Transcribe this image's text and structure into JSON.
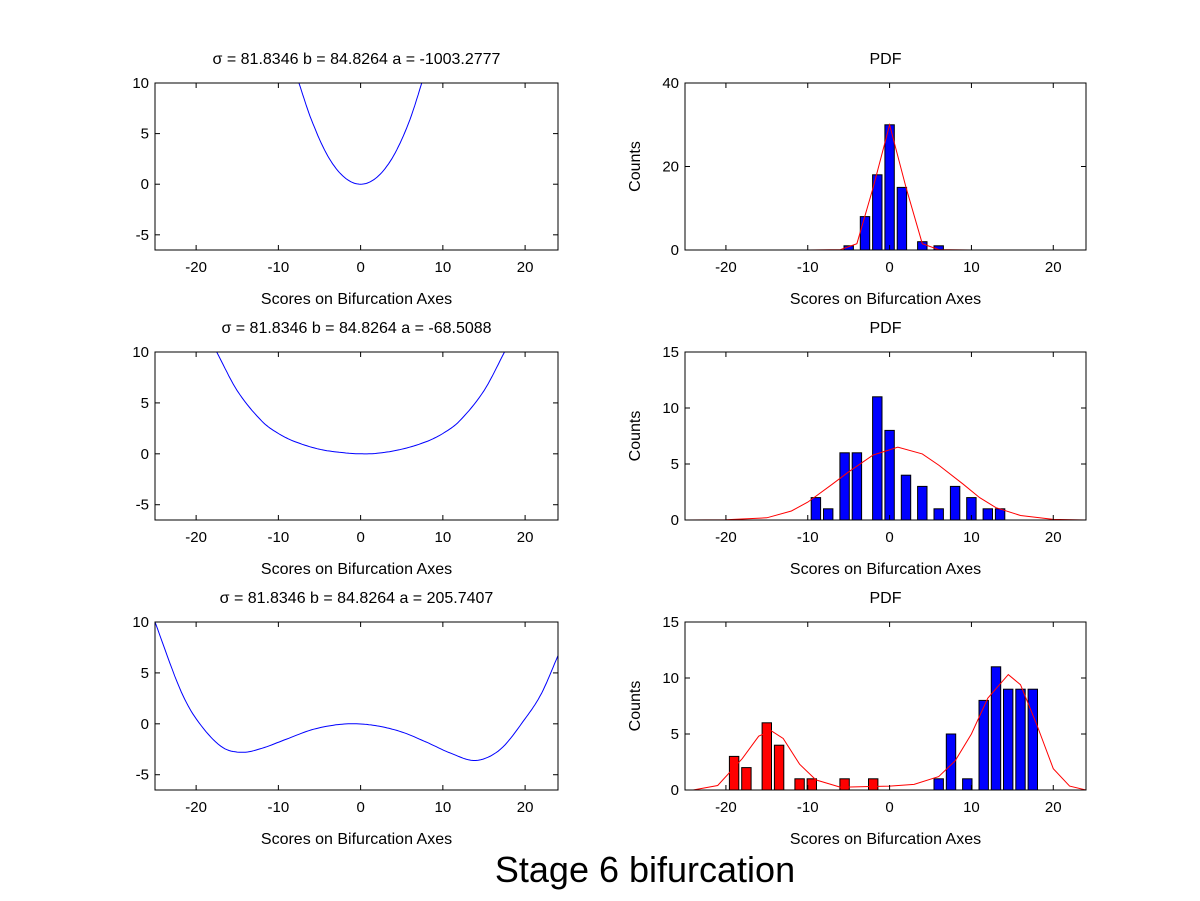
{
  "figure": {
    "suptitle": "Stage 6 bifurcation",
    "colors": {
      "curve": "#0000ff",
      "bar_blue": "#0000ff",
      "bar_red": "#ff0000",
      "fit": "#ff0000",
      "axes": "#000000"
    }
  },
  "chart_data": [
    {
      "type": "line",
      "title": "σ = 81.8346  b = 84.8264  a = -1003.2777",
      "xlabel": "Scores on Bifurcation Axes",
      "ylabel": "",
      "xlim": [
        -25,
        24
      ],
      "ylim": [
        -6.5,
        10
      ],
      "xticks": [
        -20,
        -10,
        0,
        10,
        20
      ],
      "yticks": [
        -5,
        0,
        5,
        10
      ],
      "grid": false,
      "potential": {
        "sigma": 81.8346,
        "b": 84.8264,
        "a": -1003.2777
      },
      "series": [
        {
          "x": [
            -7.5,
            -6,
            -4,
            -2,
            0,
            2,
            4,
            6,
            8
          ],
          "y": [
            10.0,
            6.4,
            2.8,
            0.7,
            0.0,
            0.7,
            2.8,
            6.4,
            11.5
          ]
        }
      ]
    },
    {
      "type": "bar",
      "title": "PDF",
      "xlabel": "Scores on Bifurcation Axes",
      "ylabel": "Counts",
      "xlim": [
        -25,
        24
      ],
      "ylim": [
        0,
        40
      ],
      "xticks": [
        -20,
        -10,
        0,
        10,
        20
      ],
      "yticks": [
        0,
        20,
        40
      ],
      "grid": false,
      "series": [
        {
          "color": "blue",
          "x": [
            -5,
            -3,
            -1.5,
            0,
            1.5,
            4,
            6
          ],
          "values": [
            1,
            8,
            18,
            30,
            15,
            2,
            1
          ]
        }
      ],
      "fit": {
        "x": [
          -14,
          -10,
          -6,
          -4,
          -2,
          0,
          2,
          4,
          6,
          10,
          15
        ],
        "y": [
          0,
          0,
          0.1,
          1.5,
          15,
          30,
          15,
          1.5,
          0.1,
          0,
          0
        ]
      }
    },
    {
      "type": "line",
      "title": "σ = 81.8346  b = 84.8264  a = -68.5088",
      "xlabel": "Scores on Bifurcation Axes",
      "ylabel": "",
      "xlim": [
        -25,
        24
      ],
      "ylim": [
        -6.5,
        10
      ],
      "xticks": [
        -20,
        -10,
        0,
        10,
        20
      ],
      "yticks": [
        -5,
        0,
        5,
        10
      ],
      "grid": false,
      "potential": {
        "sigma": 81.8346,
        "b": 84.8264,
        "a": -68.5088
      },
      "series": [
        {
          "x": [
            -17.5,
            -15,
            -12,
            -10,
            -8,
            -5,
            -2,
            0,
            2,
            5,
            8,
            10,
            12,
            15,
            17.5
          ],
          "y": [
            10,
            6.2,
            3.2,
            2.0,
            1.2,
            0.45,
            0.1,
            0.0,
            0.05,
            0.45,
            1.2,
            2.0,
            3.2,
            6.2,
            10
          ]
        }
      ]
    },
    {
      "type": "bar",
      "title": "PDF",
      "xlabel": "Scores on Bifurcation Axes",
      "ylabel": "Counts",
      "xlim": [
        -25,
        24
      ],
      "ylim": [
        0,
        15
      ],
      "xticks": [
        -20,
        -10,
        0,
        10,
        20
      ],
      "yticks": [
        0,
        5,
        10,
        15
      ],
      "grid": false,
      "series": [
        {
          "color": "blue",
          "x": [
            -9,
            -7.5,
            -5.5,
            -4,
            -1.5,
            0,
            2,
            4,
            6,
            8,
            10,
            12,
            13.5
          ],
          "values": [
            2,
            1,
            6,
            6,
            11,
            8,
            4,
            3,
            1,
            3,
            2,
            1,
            1
          ]
        }
      ],
      "fit": {
        "x": [
          -25,
          -20,
          -15,
          -12,
          -10,
          -7,
          -5,
          -2,
          1,
          4,
          6,
          9,
          11,
          13,
          16,
          20,
          24
        ],
        "y": [
          0,
          0.02,
          0.2,
          0.8,
          1.6,
          3.2,
          4.3,
          5.8,
          6.5,
          5.9,
          4.9,
          3.2,
          2.0,
          1.1,
          0.4,
          0.05,
          0
        ]
      }
    },
    {
      "type": "line",
      "title": "σ = 81.8346  b = 84.8264  a = 205.7407",
      "xlabel": "Scores on Bifurcation Axes",
      "ylabel": "",
      "xlim": [
        -25,
        24
      ],
      "ylim": [
        -6.5,
        10
      ],
      "xticks": [
        -20,
        -10,
        0,
        10,
        20
      ],
      "yticks": [
        -5,
        0,
        5,
        10
      ],
      "grid": false,
      "potential": {
        "sigma": 81.8346,
        "b": 84.8264,
        "a": 205.7407
      },
      "series": [
        {
          "x": [
            -25,
            -22,
            -20,
            -17,
            -14.5,
            -12,
            -9,
            -6,
            -3,
            -0.5,
            2,
            5,
            8,
            11,
            14,
            17,
            20,
            22,
            24
          ],
          "y": [
            10,
            3.5,
            0.5,
            -2.2,
            -2.8,
            -2.4,
            -1.5,
            -0.6,
            -0.1,
            0.0,
            -0.2,
            -0.8,
            -1.8,
            -2.9,
            -3.6,
            -2.5,
            0.5,
            3.0,
            6.7
          ]
        }
      ]
    },
    {
      "type": "bar",
      "title": "PDF",
      "xlabel": "Scores on Bifurcation Axes",
      "ylabel": "Counts",
      "xlim": [
        -25,
        24
      ],
      "ylim": [
        0,
        15
      ],
      "xticks": [
        -20,
        -10,
        0,
        10,
        20
      ],
      "yticks": [
        0,
        5,
        10,
        15
      ],
      "grid": false,
      "series": [
        {
          "color": "red",
          "x": [
            -19,
            -17.5,
            -15,
            -13.5,
            -11,
            -9.5,
            -5.5,
            -2
          ],
          "values": [
            3,
            2,
            6,
            4,
            1,
            1,
            1,
            1
          ]
        },
        {
          "color": "blue",
          "x": [
            6,
            7.5,
            9.5,
            11.5,
            13,
            14.5,
            16,
            17.5
          ],
          "values": [
            1,
            5,
            1,
            8,
            11,
            9,
            9,
            9
          ]
        }
      ],
      "fit": {
        "x": [
          -24,
          -21,
          -18,
          -16,
          -14.5,
          -13,
          -11,
          -9,
          -6,
          -3,
          0,
          3,
          6,
          8,
          10,
          12,
          14.5,
          16,
          18,
          20,
          22,
          24
        ],
        "y": [
          0,
          0.4,
          2.8,
          4.8,
          5.3,
          4.6,
          2.3,
          0.9,
          0.25,
          0.3,
          0.35,
          0.5,
          1.2,
          2.6,
          5.0,
          8.2,
          10.3,
          9.4,
          5.8,
          1.9,
          0.35,
          0
        ]
      }
    }
  ]
}
